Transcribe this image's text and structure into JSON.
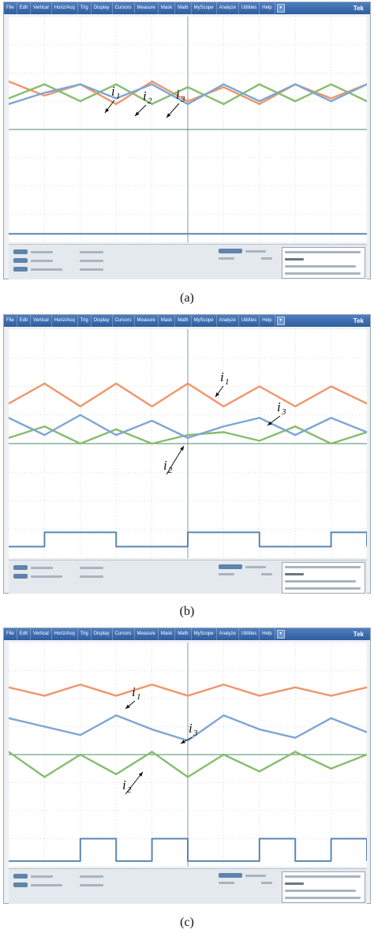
{
  "menu": [
    "File",
    "Edit",
    "Vertical",
    "Horiz/Acq",
    "Trig",
    "Display",
    "Cursors",
    "Measure",
    "Mask",
    "Math",
    "MyScope",
    "Analyze",
    "Utilities",
    "Help"
  ],
  "brand": "Tek",
  "colors": {
    "i1": "#f0956a",
    "i2": "#86bd6e",
    "i3": "#7ea6d4",
    "gate": "#5b86b3",
    "grid": "#c9d3dc",
    "axis": "#8a9aa8",
    "zero": "#4f8a6a"
  },
  "panels": [
    {
      "caption": "(a)",
      "labels": [
        {
          "curve": "i1",
          "letter": "i",
          "sub": "1"
        },
        {
          "curve": "i2",
          "letter": "i",
          "sub": "2"
        },
        {
          "curve": "i3",
          "letter": "i",
          "sub": "3"
        }
      ]
    },
    {
      "caption": "(b)",
      "labels": [
        {
          "curve": "i1",
          "letter": "i",
          "sub": "1"
        },
        {
          "curve": "i3",
          "letter": "i",
          "sub": "3"
        },
        {
          "curve": "i2",
          "letter": "i",
          "sub": "2"
        }
      ]
    },
    {
      "caption": "(c)",
      "labels": [
        {
          "curve": "i1",
          "letter": "i",
          "sub": "1"
        },
        {
          "curve": "i3",
          "letter": "i",
          "sub": "3"
        },
        {
          "curve": "i2",
          "letter": "i",
          "sub": "2"
        }
      ]
    }
  ],
  "chart_data": [
    {
      "type": "line",
      "title": "(a)",
      "xlabel": "",
      "ylabel": "",
      "x_divisions": 10,
      "y_divisions": 8,
      "grid": true,
      "x": [
        0,
        1,
        2,
        3,
        4,
        5,
        6,
        7,
        8,
        9,
        10
      ],
      "series": [
        {
          "name": "i1",
          "values": [
            5.7,
            5.2,
            5.6,
            4.9,
            5.7,
            5.0,
            5.5,
            4.9,
            5.6,
            5.1,
            5.6
          ]
        },
        {
          "name": "i2",
          "values": [
            5.1,
            5.6,
            5.0,
            5.6,
            4.9,
            5.5,
            4.9,
            5.6,
            5.0,
            5.6,
            5.0
          ]
        },
        {
          "name": "i3",
          "values": [
            4.9,
            5.3,
            5.6,
            5.1,
            5.6,
            4.9,
            5.6,
            5.0,
            5.6,
            5.0,
            5.6
          ]
        },
        {
          "name": "gate",
          "values": [
            0.3,
            0.3,
            0.3,
            0.3,
            0.3,
            0.3,
            0.3,
            0.3,
            0.3,
            0.3,
            0.3
          ]
        }
      ]
    },
    {
      "type": "line",
      "title": "(b)",
      "xlabel": "",
      "ylabel": "",
      "x_divisions": 10,
      "y_divisions": 8,
      "grid": true,
      "x": [
        0,
        1,
        2,
        3,
        4,
        5,
        6,
        7,
        8,
        9,
        10
      ],
      "series": [
        {
          "name": "i1",
          "values": [
            5.4,
            6.1,
            5.3,
            6.1,
            5.3,
            6.1,
            5.3,
            6.0,
            5.3,
            6.0,
            5.4
          ]
        },
        {
          "name": "i2",
          "values": [
            4.2,
            4.6,
            4.0,
            4.5,
            4.0,
            4.3,
            4.4,
            4.1,
            4.6,
            4.0,
            4.4
          ]
        },
        {
          "name": "i3",
          "values": [
            4.9,
            4.3,
            5.0,
            4.3,
            4.8,
            4.2,
            4.6,
            4.9,
            4.3,
            4.9,
            4.4
          ]
        },
        {
          "name": "gate",
          "values": [
            0.4,
            0.9,
            0.9,
            0.4,
            0.4,
            0.9,
            0.9,
            0.4,
            0.4,
            0.9,
            0.4
          ]
        }
      ]
    },
    {
      "type": "line",
      "title": "(c)",
      "xlabel": "",
      "ylabel": "",
      "x_divisions": 10,
      "y_divisions": 8,
      "grid": true,
      "x": [
        0,
        1,
        2,
        3,
        4,
        5,
        6,
        7,
        8,
        9,
        10
      ],
      "series": [
        {
          "name": "i1",
          "values": [
            6.4,
            6.1,
            6.5,
            6.1,
            6.5,
            6.1,
            6.5,
            6.1,
            6.4,
            6.1,
            6.4
          ]
        },
        {
          "name": "i2",
          "values": [
            4.1,
            3.2,
            4.0,
            3.3,
            4.1,
            3.2,
            4.0,
            3.4,
            4.1,
            3.5,
            4.0
          ]
        },
        {
          "name": "i3",
          "values": [
            5.3,
            5.0,
            4.7,
            5.4,
            4.9,
            4.5,
            5.4,
            4.9,
            4.6,
            5.3,
            4.8
          ]
        },
        {
          "name": "gate",
          "values": [
            0.2,
            0.2,
            1.0,
            0.2,
            1.0,
            0.2,
            0.2,
            1.0,
            0.2,
            1.0,
            0.2
          ]
        }
      ]
    }
  ]
}
